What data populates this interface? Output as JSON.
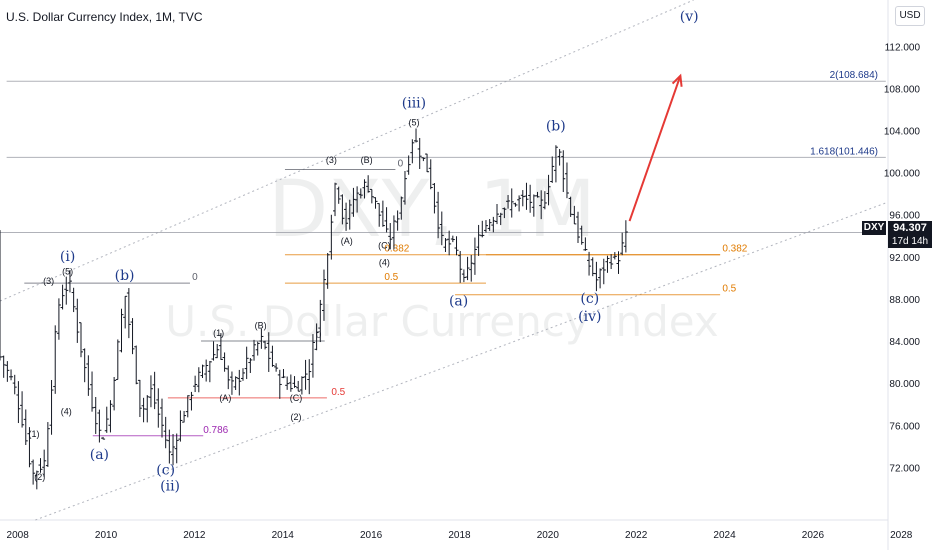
{
  "header": {
    "title": "U.S. Dollar Currency Index, 1M, TVC",
    "currency_button": "USD"
  },
  "price_tag": {
    "symbol": "DXY",
    "value": "94.307",
    "countdown": "17d 14h"
  },
  "watermark": {
    "symbol": "DXY, 1M",
    "name": "U.S. Dollar Currency Index"
  },
  "colors": {
    "background": "#ffffff",
    "bar": "#131722",
    "wave_label": "#1e3a8a",
    "fib_orange": "#e07b00",
    "fib_red": "#e53935",
    "fib_purple": "#9c27b0",
    "arrow": "#e53935",
    "channel": "#b2b5be"
  },
  "chart_data": {
    "type": "ohlc",
    "xaxis": {
      "min": 2007.6,
      "max": 2027.7,
      "ticks": [
        "2008",
        "2010",
        "2012",
        "2014",
        "2016",
        "2018",
        "2020",
        "2022",
        "2024",
        "2026",
        "2028"
      ]
    },
    "yaxis": {
      "min": 67.0,
      "max": 116.4,
      "ticks": [
        "72.000",
        "76.000",
        "80.000",
        "84.000",
        "88.000",
        "92.000",
        "96.000",
        "100.000",
        "104.000",
        "108.000",
        "112.000"
      ]
    },
    "last_price": 94.307,
    "price_path": [
      [
        2007.6,
        82.5
      ],
      [
        2007.9,
        80.0
      ],
      [
        2008.1,
        76.5
      ],
      [
        2008.33,
        71.3
      ],
      [
        2008.6,
        72.5
      ],
      [
        2008.75,
        79.0
      ],
      [
        2008.9,
        87.0
      ],
      [
        2009.0,
        88.5
      ],
      [
        2009.17,
        89.5
      ],
      [
        2009.4,
        84.0
      ],
      [
        2009.6,
        79.5
      ],
      [
        2009.9,
        74.5
      ],
      [
        2010.1,
        78.0
      ],
      [
        2010.42,
        88.7
      ],
      [
        2010.6,
        83.0
      ],
      [
        2010.8,
        77.0
      ],
      [
        2011.0,
        79.5
      ],
      [
        2011.3,
        75.5
      ],
      [
        2011.45,
        73.0
      ],
      [
        2011.7,
        76.5
      ],
      [
        2012.0,
        80.0
      ],
      [
        2012.55,
        83.5
      ],
      [
        2012.8,
        79.5
      ],
      [
        2013.0,
        80.5
      ],
      [
        2013.5,
        84.2
      ],
      [
        2013.9,
        80.5
      ],
      [
        2014.3,
        79.5
      ],
      [
        2014.6,
        81.5
      ],
      [
        2014.9,
        88.5
      ],
      [
        2015.2,
        99.5
      ],
      [
        2015.4,
        95.0
      ],
      [
        2015.6,
        97.5
      ],
      [
        2015.9,
        99.0
      ],
      [
        2016.1,
        97.0
      ],
      [
        2016.4,
        93.5
      ],
      [
        2016.6,
        96.0
      ],
      [
        2016.95,
        103.5
      ],
      [
        2017.3,
        100.0
      ],
      [
        2017.6,
        93.5
      ],
      [
        2017.9,
        93.0
      ],
      [
        2018.1,
        89.5
      ],
      [
        2018.5,
        94.5
      ],
      [
        2018.9,
        96.5
      ],
      [
        2019.4,
        97.5
      ],
      [
        2019.9,
        97.0
      ],
      [
        2020.22,
        102.8
      ],
      [
        2020.5,
        96.5
      ],
      [
        2020.9,
        91.5
      ],
      [
        2021.1,
        89.8
      ],
      [
        2021.4,
        92.0
      ],
      [
        2021.55,
        91.5
      ],
      [
        2021.8,
        94.307
      ]
    ],
    "horizontal_lines": [
      {
        "y": 108.684,
        "x_from": 2007.75,
        "x_to": 2027.65,
        "color": "#9598a1",
        "label": "2(108.684)"
      },
      {
        "y": 101.446,
        "x_from": 2007.75,
        "x_to": 2027.65,
        "color": "#9598a1",
        "label": "1.618(101.446)"
      },
      {
        "y": 94.307,
        "x_from": 2007.6,
        "x_to": 2027.65,
        "color": "#9598a1",
        "label": ""
      },
      {
        "y": 89.5,
        "x_from": 2008.15,
        "x_to": 2011.9,
        "color": "#5d606b",
        "label": "0",
        "label_x": 2011.95
      },
      {
        "y": 100.3,
        "x_from": 2014.05,
        "x_to": 2016.55,
        "color": "#5d606b",
        "label": "0",
        "label_x": 2016.6
      },
      {
        "y": 84.0,
        "x_from": 2012.15,
        "x_to": 2014.95,
        "color": "#5d606b",
        "label": "0",
        "label_x": 2014.75
      },
      {
        "y": 92.2,
        "x_from": 2014.05,
        "x_to": 2023.9,
        "color": "#e07b00",
        "label": "0.382",
        "label_x": 2016.3
      },
      {
        "y": 89.5,
        "x_from": 2014.05,
        "x_to": 2018.6,
        "color": "#e07b00",
        "label": "0.5",
        "label_x": 2016.3
      },
      {
        "y": 92.2,
        "x_from": 2018.6,
        "x_to": 2023.9,
        "color": "#e07b00",
        "label": "0.382",
        "label_x": 2023.95
      },
      {
        "y": 88.4,
        "x_from": 2017.9,
        "x_to": 2023.9,
        "color": "#e07b00",
        "label": "0.5",
        "label_x": 2023.95
      },
      {
        "y": 78.6,
        "x_from": 2011.4,
        "x_to": 2015.0,
        "color": "#e53935",
        "label": "0.5",
        "label_x": 2015.1
      },
      {
        "y": 75.0,
        "x_from": 2009.7,
        "x_to": 2012.2,
        "color": "#9c27b0",
        "label": "0.786",
        "label_x": 2012.2
      }
    ],
    "channel": {
      "upper": [
        [
          2007.6,
          87.8
        ],
        [
          2023.3,
          116.4
        ]
      ],
      "lower": [
        [
          2008.4,
          67.0
        ],
        [
          2027.7,
          97.2
        ]
      ]
    },
    "projection_arrow": {
      "from": [
        2021.85,
        95.4
      ],
      "to": [
        2023.0,
        109.2
      ]
    },
    "wave_labels": [
      {
        "text": "(i)",
        "x": 2009.13,
        "y": 91.6,
        "kind": "major"
      },
      {
        "text": "(ii)",
        "x": 2011.45,
        "y": 69.8,
        "kind": "major"
      },
      {
        "text": "(iii)",
        "x": 2016.97,
        "y": 106.2,
        "kind": "major"
      },
      {
        "text": "(iv)",
        "x": 2020.95,
        "y": 85.9,
        "kind": "major"
      },
      {
        "text": "(v)",
        "x": 2023.2,
        "y": 114.4,
        "kind": "major"
      },
      {
        "text": "(a)",
        "x": 2009.85,
        "y": 72.8,
        "kind": "major"
      },
      {
        "text": "(b)",
        "x": 2010.42,
        "y": 89.8,
        "kind": "major"
      },
      {
        "text": "(c)",
        "x": 2011.35,
        "y": 71.3,
        "kind": "major"
      },
      {
        "text": "(a)",
        "x": 2017.98,
        "y": 87.4,
        "kind": "major"
      },
      {
        "text": "(b)",
        "x": 2020.18,
        "y": 104.0,
        "kind": "major"
      },
      {
        "text": "(c)",
        "x": 2020.95,
        "y": 87.6,
        "kind": "major"
      },
      {
        "text": "(5)",
        "x": 2009.13,
        "y": 90.3,
        "kind": "minor"
      },
      {
        "text": "(3)",
        "x": 2008.7,
        "y": 89.4,
        "kind": "minor"
      },
      {
        "text": "(4)",
        "x": 2009.1,
        "y": 77.0,
        "kind": "minor"
      },
      {
        "text": "(1)",
        "x": 2008.37,
        "y": 74.9,
        "kind": "minor"
      },
      {
        "text": "(2)",
        "x": 2008.5,
        "y": 70.8,
        "kind": "minor"
      },
      {
        "text": "(1)",
        "x": 2012.55,
        "y": 84.5,
        "kind": "minor"
      },
      {
        "text": "(B)",
        "x": 2013.5,
        "y": 85.2,
        "kind": "minor"
      },
      {
        "text": "(A)",
        "x": 2012.7,
        "y": 78.3,
        "kind": "minor"
      },
      {
        "text": "(C)",
        "x": 2014.3,
        "y": 78.3,
        "kind": "minor"
      },
      {
        "text": "(2)",
        "x": 2014.3,
        "y": 76.5,
        "kind": "minor"
      },
      {
        "text": "(3)",
        "x": 2015.1,
        "y": 100.9,
        "kind": "minor"
      },
      {
        "text": "(B)",
        "x": 2015.9,
        "y": 100.9,
        "kind": "minor"
      },
      {
        "text": "(A)",
        "x": 2015.45,
        "y": 93.2,
        "kind": "minor"
      },
      {
        "text": "(C)",
        "x": 2016.3,
        "y": 92.8,
        "kind": "minor"
      },
      {
        "text": "(4)",
        "x": 2016.3,
        "y": 91.2,
        "kind": "minor"
      },
      {
        "text": "(5)",
        "x": 2016.97,
        "y": 104.5,
        "kind": "minor"
      }
    ]
  }
}
